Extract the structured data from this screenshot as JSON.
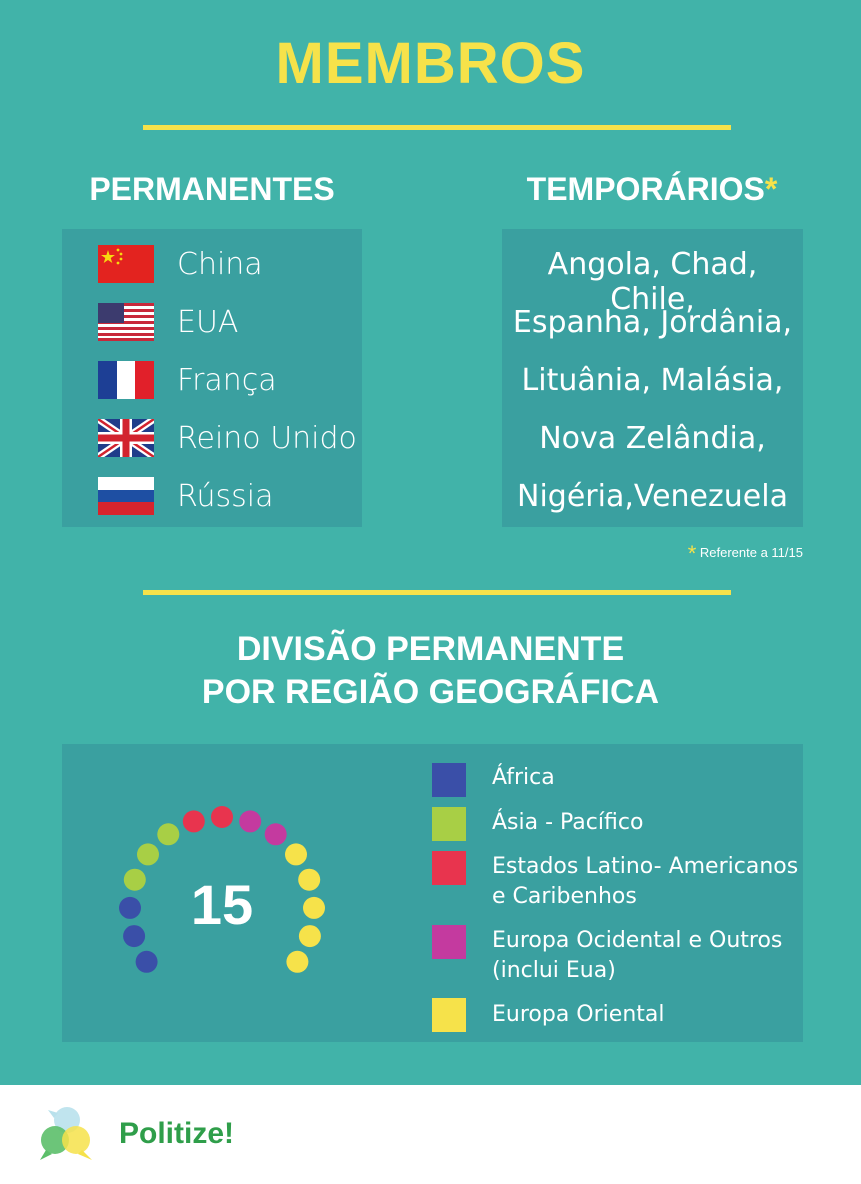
{
  "title": "MEMBROS",
  "permanent": {
    "heading": "PERMANENTES",
    "countries": [
      {
        "name": "China",
        "flag": "china-flag"
      },
      {
        "name": "EUA",
        "flag": "usa-flag"
      },
      {
        "name": "França",
        "flag": "france-flag"
      },
      {
        "name": "Reino Unido",
        "flag": "uk-flag"
      },
      {
        "name": "Rússia",
        "flag": "russia-flag"
      }
    ]
  },
  "temporary": {
    "heading": "TEMPORÁRIOS",
    "asterisk": "*",
    "lines": [
      "Angola, Chad, Chile,",
      "Espanha, Jordânia,",
      "Lituânia, Malásia,",
      "Nova Zelândia,",
      "Nigéria,Venezuela"
    ]
  },
  "footnote": {
    "star": "*",
    "text": "Referente a 11/15"
  },
  "division": {
    "heading_line1": "DIVISÃO PERMANENTE",
    "heading_line2": "POR REGIÃO GEOGRÁFICA",
    "total": "15",
    "legend": [
      {
        "label": "África",
        "color": "#3a4fa8"
      },
      {
        "label": "Ásia - Pacífico",
        "color": "#a8cf45"
      },
      {
        "label": "Estados Latino- Americanos e Caribenhos",
        "color": "#e8344e"
      },
      {
        "label": "Europa Ocidental e Outros (inclui Eua)",
        "color": "#c43a9f"
      },
      {
        "label": "Europa Oriental",
        "color": "#f6e24a"
      }
    ],
    "seat_groups": [
      {
        "region": "África",
        "count": 3
      },
      {
        "region": "Ásia - Pacífico",
        "count": 3
      },
      {
        "region": "Estados Latino- Americanos e Caribenhos",
        "count": 2
      },
      {
        "region": "Europa Ocidental e Outros (inclui Eua)",
        "count": 2
      },
      {
        "region": "Europa Oriental",
        "count": 5
      }
    ]
  },
  "footer": {
    "brand": "Politize!"
  }
}
